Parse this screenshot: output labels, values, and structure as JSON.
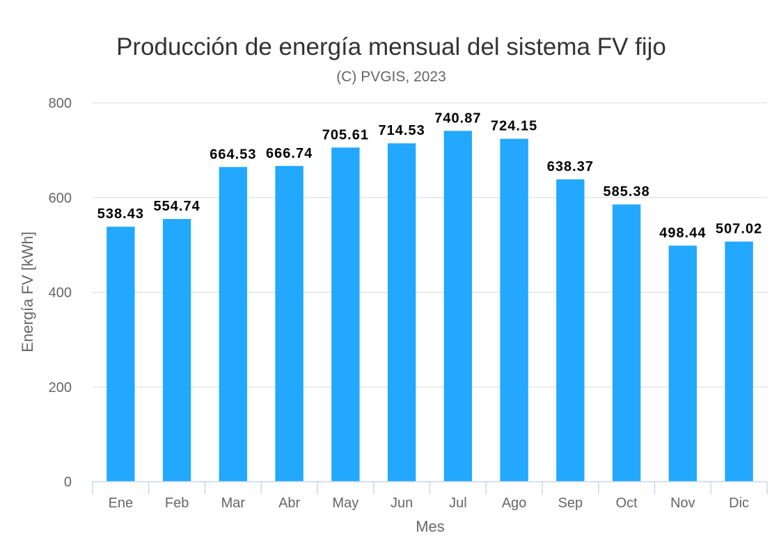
{
  "chart_data": {
    "type": "bar",
    "title": "Producción de energía mensual del sistema FV fijo",
    "subtitle": "(C) PVGIS, 2023",
    "xlabel": "Mes",
    "ylabel": "Energía FV [kWh]",
    "categories": [
      "Ene",
      "Feb",
      "Mar",
      "Abr",
      "May",
      "Jun",
      "Jul",
      "Ago",
      "Sep",
      "Oct",
      "Nov",
      "Dic"
    ],
    "values": [
      538.43,
      554.74,
      664.53,
      666.74,
      705.61,
      714.53,
      740.87,
      724.15,
      638.37,
      585.38,
      498.44,
      507.02
    ],
    "data_labels": [
      "538.43",
      "554.74",
      "664.53",
      "666.74",
      "705.61",
      "714.53",
      "740.87",
      "724.15",
      "638.37",
      "585.38",
      "498.44",
      "507.02"
    ],
    "ylim": [
      0,
      800
    ],
    "yticks": [
      0,
      200,
      400,
      600,
      800
    ],
    "ytick_labels": [
      "0",
      "200",
      "400",
      "600",
      "800"
    ],
    "grid": true,
    "legend": "none",
    "colors": {
      "bar": "#22a8fe",
      "grid": "#d9d9d9",
      "axis": "#ccd6eb"
    }
  }
}
